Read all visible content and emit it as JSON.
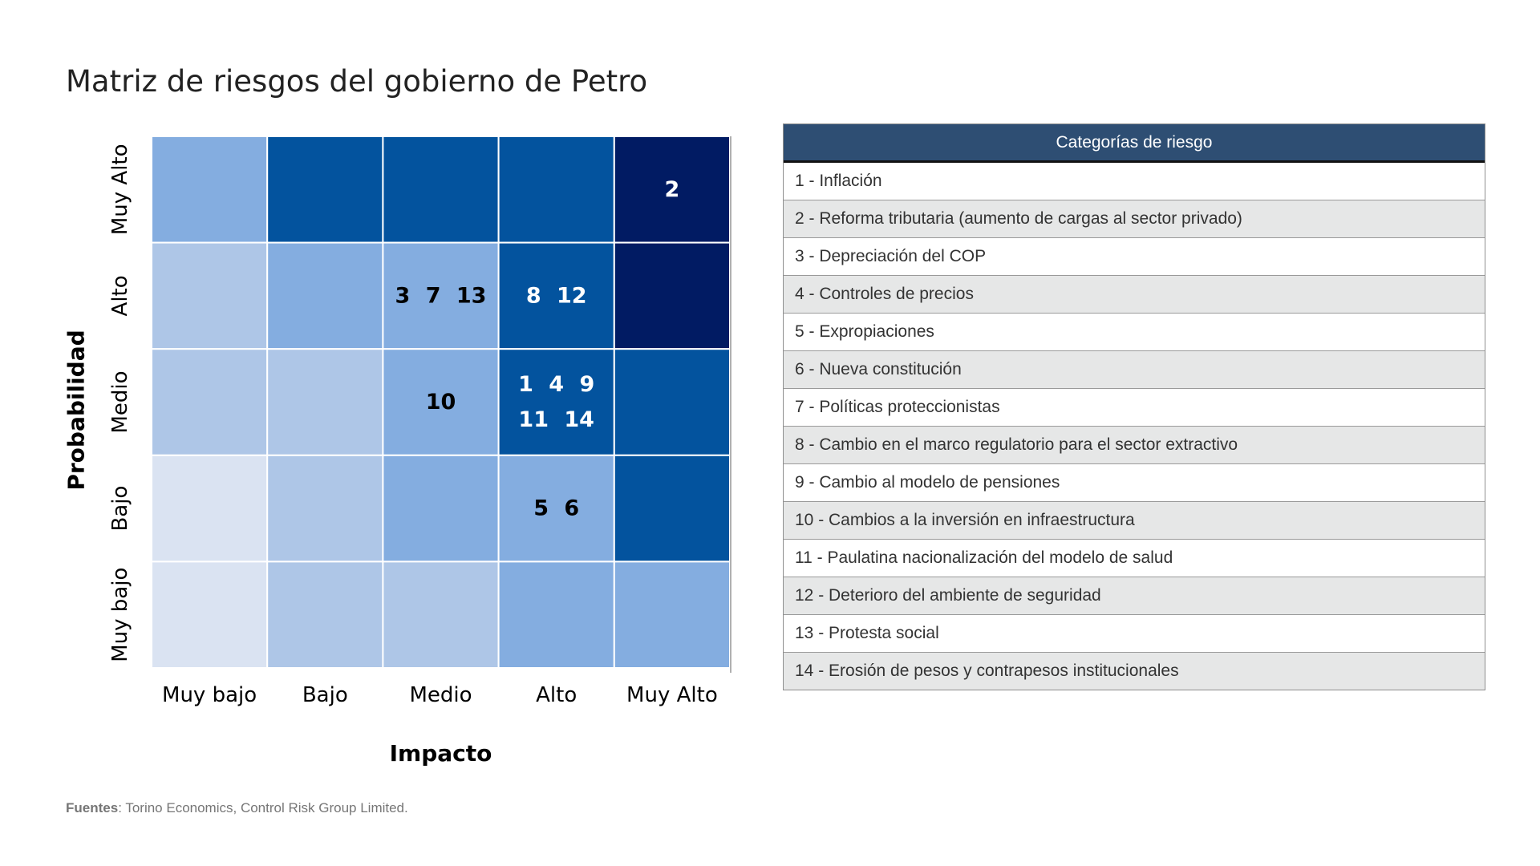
{
  "title": "Matriz de riesgos del gobierno de Petro",
  "chart_data": {
    "type": "heatmap",
    "xlabel": "Impacto",
    "ylabel": "Probabilidad",
    "x_categories": [
      "Muy bajo",
      "Bajo",
      "Medio",
      "Alto",
      "Muy Alto"
    ],
    "y_categories": [
      "Muy Alto",
      "Alto",
      "Medio",
      "Bajo",
      "Muy bajo"
    ],
    "color_levels": [
      "#dae3f2",
      "#aec6e7",
      "#84ade0",
      "#03539e",
      "#011b63"
    ],
    "level_grid": [
      [
        2,
        3,
        3,
        3,
        4
      ],
      [
        1,
        2,
        2,
        3,
        4
      ],
      [
        1,
        1,
        2,
        3,
        3
      ],
      [
        0,
        1,
        2,
        2,
        3
      ],
      [
        0,
        1,
        1,
        2,
        2
      ]
    ],
    "cells": [
      {
        "row": 0,
        "col": 4,
        "lines": [
          "2"
        ]
      },
      {
        "row": 1,
        "col": 2,
        "lines": [
          "3 7 13"
        ]
      },
      {
        "row": 1,
        "col": 3,
        "lines": [
          "8 12"
        ]
      },
      {
        "row": 2,
        "col": 2,
        "lines": [
          "10"
        ]
      },
      {
        "row": 2,
        "col": 3,
        "lines": [
          "1 4 9",
          "11 14"
        ]
      },
      {
        "row": 3,
        "col": 3,
        "lines": [
          "5 6"
        ]
      }
    ]
  },
  "legend": {
    "header": "Categorías de riesgo",
    "items": [
      "1 - Inflación",
      "2 - Reforma tributaria (aumento de cargas al sector privado)",
      "3 - Depreciación del COP",
      "4 - Controles de precios",
      "5 - Expropiaciones",
      "6 - Nueva constitución",
      "7 - Políticas proteccionistas",
      "8 - Cambio en el marco regulatorio para el sector extractivo",
      "9 - Cambio al modelo de pensiones",
      "10 - Cambios a la inversión en infraestructura",
      "11 - Paulatina nacionalización del modelo de salud",
      "12 - Deterioro del ambiente de seguridad",
      "13 - Protesta social",
      "14 - Erosión de pesos y contrapesos institucionales"
    ]
  },
  "source": {
    "label": "Fuentes",
    "text": ": Torino Economics, Control Risk Group Limited."
  }
}
